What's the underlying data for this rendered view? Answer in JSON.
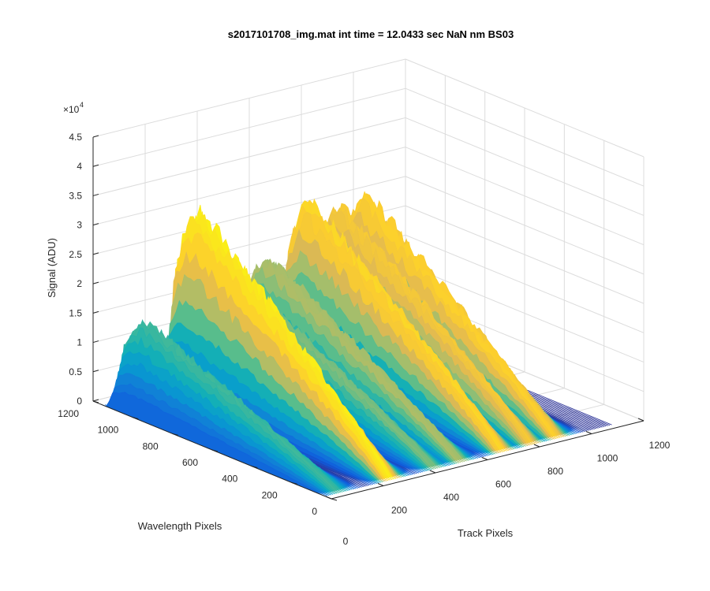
{
  "chart_data": {
    "type": "surface",
    "title": "s2017101708_img.mat int time = 12.0433 sec  NaN nm BS03",
    "xlabel": "Track Pixels",
    "ylabel": "Wavelength Pixels",
    "zlabel": "Signal (ADU)",
    "z_exponent_label": "×10",
    "z_exponent_power": "4",
    "xlim": [
      0,
      1200
    ],
    "ylim": [
      0,
      1200
    ],
    "zlim": [
      0,
      4.5
    ],
    "z_multiplier": 10000,
    "x_ticks": [
      "200",
      "400",
      "600",
      "800",
      "1000",
      "1200"
    ],
    "x_tick_values": [
      200,
      400,
      600,
      800,
      1000,
      1200
    ],
    "x_zero_label": "0",
    "y_ticks": [
      "0",
      "200",
      "400",
      "600",
      "800",
      "1000",
      "1200"
    ],
    "y_tick_values": [
      0,
      200,
      400,
      600,
      800,
      1000,
      1200
    ],
    "z_ticks": [
      "0",
      "0.5",
      "1",
      "1.5",
      "2",
      "2.5",
      "3",
      "3.5",
      "4",
      "4.5"
    ],
    "z_tick_values": [
      0,
      0.5,
      1,
      1.5,
      2,
      2.5,
      3,
      3.5,
      4,
      4.5
    ],
    "grid": true,
    "colormap": "parula",
    "track_peaks": [
      {
        "track_center": 60,
        "peak_signal": 1.6
      },
      {
        "track_center": 260,
        "peak_signal": 3.35
      },
      {
        "track_center": 430,
        "peak_signal": 1.9
      },
      {
        "track_center": 530,
        "peak_signal": 2.2
      },
      {
        "track_center": 690,
        "peak_signal": 3.0
      },
      {
        "track_center": 800,
        "peak_signal": 2.8
      },
      {
        "track_center": 900,
        "peak_signal": 2.9
      }
    ],
    "signal_range_pixels": [
      50,
      1130
    ],
    "signal_peak_pixel": 1000
  }
}
